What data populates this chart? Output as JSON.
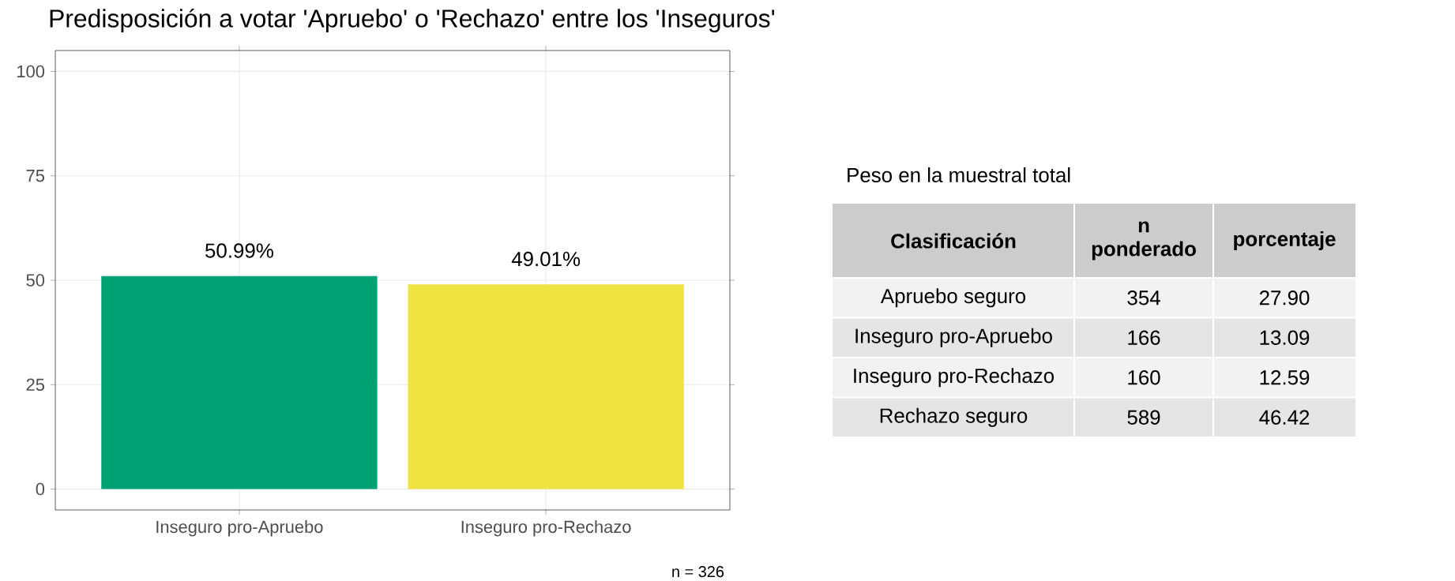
{
  "chart_data": [
    {
      "type": "bar",
      "title": "Predisposición a votar 'Apruebo' o 'Rechazo' entre los 'Inseguros'",
      "categories": [
        "Inseguro pro-Apruebo",
        "Inseguro pro-Rechazo"
      ],
      "values": [
        50.99,
        49.01
      ],
      "colors": [
        "#00a274",
        "#f0e442"
      ],
      "value_labels": [
        "50.99%",
        "49.01%"
      ],
      "ylim": [
        -5,
        105
      ],
      "yticks": [
        0,
        25,
        50,
        75,
        100
      ],
      "grid": true,
      "annotations": [
        "n = 326"
      ]
    },
    {
      "type": "other",
      "title": "Peso en la muestral total",
      "xlabel": "Clasificación",
      "categories": [
        "Apruebo seguro",
        "Inseguro pro-Apruebo",
        "Inseguro pro-Rechazo",
        "Rechazo seguro"
      ],
      "series": [
        {
          "name": "n ponderado",
          "values": [
            354,
            166,
            160,
            589
          ],
          "value_labels": [
            "354",
            "166",
            "160",
            "589"
          ],
          "colors": [
            "#f2f2f2",
            "#e5e5e5",
            "#f2f2f2",
            "#e5e5e5"
          ]
        },
        {
          "name": "porcentaje",
          "values": [
            27.9,
            13.09,
            12.59,
            46.42
          ],
          "value_labels": [
            "27.90",
            "13.09",
            "12.59",
            "46.42"
          ],
          "colors": [
            "#f2f2f2",
            "#e5e5e5",
            "#f2f2f2",
            "#e5e5e5"
          ]
        }
      ]
    }
  ]
}
